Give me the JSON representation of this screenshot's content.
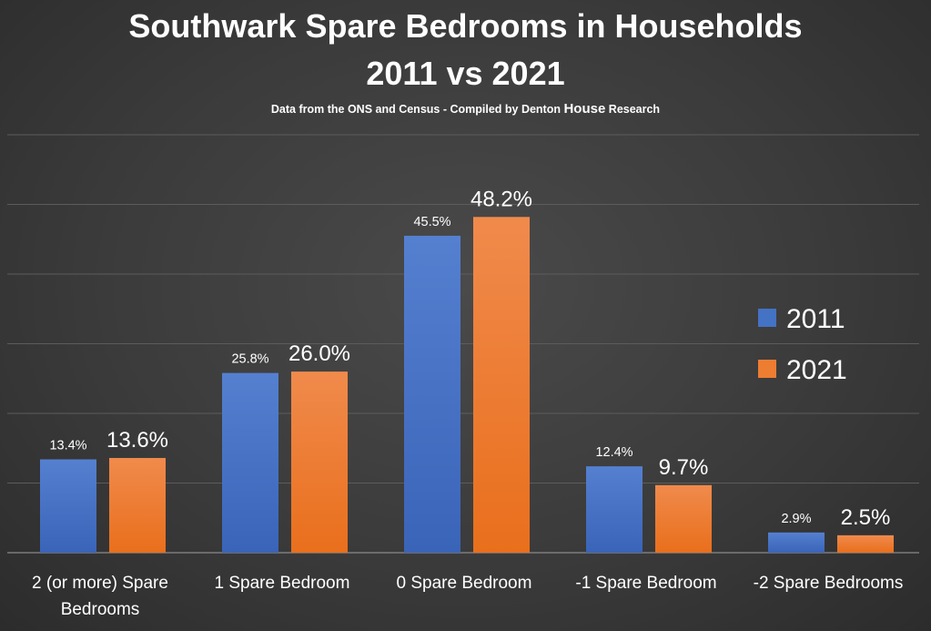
{
  "title_line1": "Southwark Spare Bedrooms in Households",
  "title_line2": "2011 vs 2021",
  "subtitle": {
    "prefix": "Data from the ONS and Census - Compiled by Denton ",
    "emphasis": "House",
    "suffix": " Research"
  },
  "colors": {
    "2011": "#4472c4",
    "2021": "#ed7d31"
  },
  "chart_data": {
    "type": "bar",
    "categories": [
      "2 (or more) Spare Bedrooms",
      "1 Spare Bedroom",
      "0 Spare Bedroom",
      "-1 Spare Bedroom",
      "-2 Spare Bedrooms"
    ],
    "category_lines": [
      [
        "2 (or more) Spare",
        "Bedrooms"
      ],
      [
        "1 Spare Bedroom"
      ],
      [
        "0 Spare Bedroom"
      ],
      [
        "-1 Spare Bedroom"
      ],
      [
        "-2 Spare Bedrooms"
      ]
    ],
    "series": [
      {
        "name": "2011",
        "values": [
          13.4,
          25.8,
          45.5,
          12.4,
          2.9
        ],
        "labels": [
          "13.4%",
          "25.8%",
          "45.5%",
          "12.4%",
          "2.9%"
        ]
      },
      {
        "name": "2021",
        "values": [
          13.6,
          26.0,
          48.2,
          9.7,
          2.5
        ],
        "labels": [
          "13.6%",
          "26.0%",
          "48.2%",
          "9.7%",
          "2.5%"
        ]
      }
    ],
    "ylim": [
      0,
      60
    ],
    "grid": true,
    "legend_position": "right"
  }
}
